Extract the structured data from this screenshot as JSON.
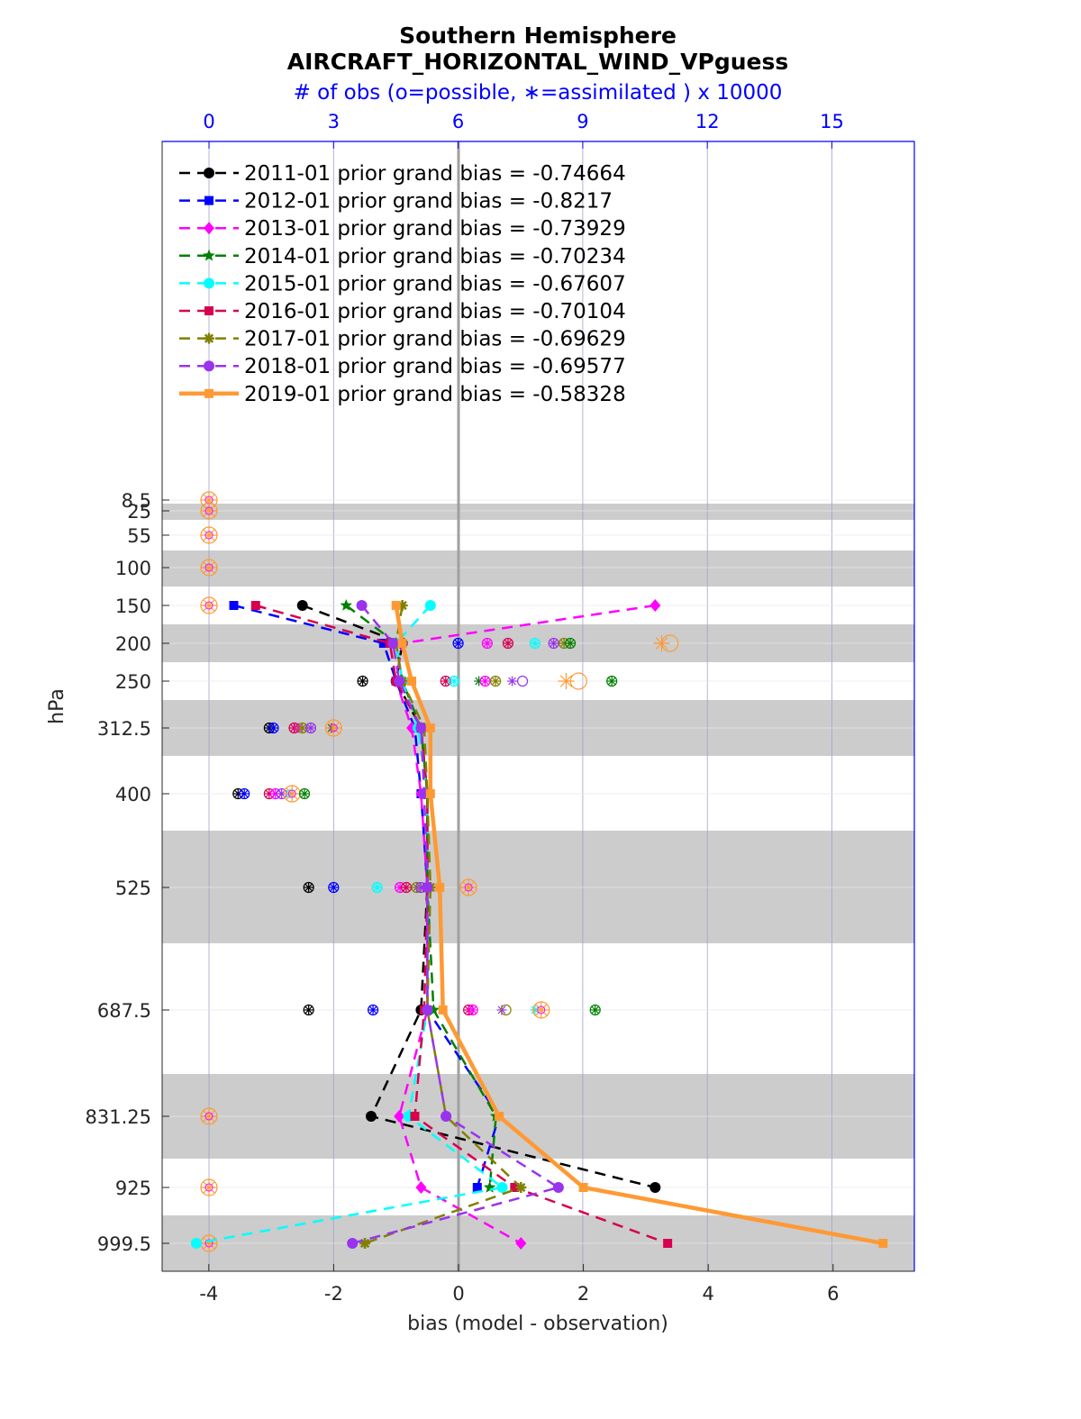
{
  "chart_data": {
    "type": "line",
    "title": "Southern Hemisphere",
    "subtitle": "AIRCRAFT_HORIZONTAL_WIND_VPguess",
    "top_axis_label": "# of obs (o=possible, ∗=assimilated ) x 10000",
    "xlabel": "bias (model - observation)",
    "ylabel": "hPa",
    "xlim": [
      -4.7,
      7.35
    ],
    "bias_ticks": [
      "-4",
      "-2",
      "0",
      "2",
      "4",
      "6"
    ],
    "obs_ticks": [
      "0",
      "3",
      "6",
      "9",
      "12",
      "15"
    ],
    "pressure_levels": [
      "8.5",
      "25",
      "55",
      "100",
      "150",
      "200",
      "250",
      "312.5",
      "400",
      "525",
      "687.5",
      "831.25",
      "925",
      "999.5"
    ],
    "grid": true,
    "legend_position": "top-left",
    "series": [
      {
        "name": "2011-01",
        "label": "2011-01 prior grand bias = -0.74664",
        "color": "#000000",
        "marker": "circle",
        "style": "dashed",
        "bias": [
          null,
          null,
          null,
          null,
          -2.5,
          -0.9,
          -1.0,
          -0.6,
          -0.5,
          -0.5,
          -0.6,
          -1.4,
          3.15,
          null
        ]
      },
      {
        "name": "2012-01",
        "label": "2012-01 prior grand bias = -0.8217",
        "color": "#0000ff",
        "marker": "square",
        "style": "dashed",
        "bias": [
          null,
          null,
          null,
          null,
          -3.6,
          -1.2,
          -1.0,
          -0.7,
          -0.6,
          -0.5,
          -0.5,
          0.65,
          0.3,
          null
        ]
      },
      {
        "name": "2013-01",
        "label": "2013-01 prior grand bias = -0.73929",
        "color": "#ff00ff",
        "marker": "diamond",
        "style": "dashed",
        "bias": [
          null,
          null,
          null,
          null,
          3.15,
          -0.9,
          -1.0,
          -0.75,
          -0.6,
          -0.5,
          -0.5,
          -0.95,
          -0.6,
          1.0
        ]
      },
      {
        "name": "2014-01",
        "label": "2014-01 prior grand bias = -0.70234",
        "color": "#008000",
        "marker": "star",
        "style": "dashed",
        "bias": [
          null,
          null,
          null,
          null,
          -1.8,
          -1.0,
          -0.9,
          -0.6,
          -0.5,
          -0.5,
          -0.4,
          0.6,
          0.5,
          null
        ]
      },
      {
        "name": "2015-01",
        "label": "2015-01 prior grand bias = -0.67607",
        "color": "#00ffff",
        "marker": "circle",
        "style": "dashed",
        "bias": [
          null,
          null,
          null,
          null,
          -0.45,
          -1.0,
          -0.9,
          -0.65,
          -0.5,
          -0.5,
          -0.5,
          -0.8,
          0.7,
          -4.2
        ]
      },
      {
        "name": "2016-01",
        "label": "2016-01 prior grand bias = -0.70104",
        "color": "#d6004f",
        "marker": "square",
        "style": "dashed",
        "bias": [
          null,
          null,
          null,
          null,
          -3.25,
          -1.1,
          -1.0,
          -0.6,
          -0.5,
          -0.5,
          -0.55,
          -0.7,
          0.9,
          3.35
        ]
      },
      {
        "name": "2017-01",
        "label": "2017-01 prior grand bias = -0.69629",
        "color": "#808000",
        "marker": "asterisk",
        "style": "dashed",
        "bias": [
          null,
          null,
          null,
          null,
          -0.9,
          -1.0,
          -0.9,
          -0.55,
          -0.5,
          -0.45,
          -0.5,
          -0.2,
          1.0,
          -1.5
        ]
      },
      {
        "name": "2018-01",
        "label": "2018-01 prior grand bias = -0.69577",
        "color": "#9933ee",
        "marker": "circle",
        "style": "dashed",
        "bias": [
          null,
          null,
          null,
          null,
          -1.55,
          -1.05,
          -0.95,
          -0.6,
          -0.55,
          -0.5,
          -0.5,
          -0.2,
          1.6,
          -1.7
        ]
      },
      {
        "name": "2019-01",
        "label": "2019-01 prior grand bias = -0.58328",
        "color": "#ff9933",
        "marker": "square",
        "style": "solid",
        "bias": [
          null,
          null,
          null,
          null,
          -1.0,
          -0.9,
          -0.75,
          -0.45,
          -0.45,
          -0.3,
          -0.25,
          0.65,
          2.0,
          6.8
        ]
      }
    ],
    "obs_count": {
      "note_units": "x 10000",
      "markers": [
        {
          "level": "8.5",
          "obs": 0.0,
          "color": "#ff9933",
          "kind": "both",
          "big": true
        },
        {
          "level": "25",
          "obs": 0.0,
          "color": "#ff9933",
          "kind": "both",
          "big": true
        },
        {
          "level": "55",
          "obs": 0.0,
          "color": "#ff9933",
          "kind": "both",
          "big": true
        },
        {
          "level": "100",
          "obs": 0.0,
          "color": "#ff9933",
          "kind": "both",
          "big": true
        },
        {
          "level": "150",
          "obs": 0.0,
          "color": "#ff9933",
          "kind": "both",
          "big": true
        },
        {
          "level": "200",
          "obs": 6.0,
          "color": "#0000ff",
          "kind": "both"
        },
        {
          "level": "200",
          "obs": 6.7,
          "color": "#ff00ff",
          "kind": "both"
        },
        {
          "level": "200",
          "obs": 7.2,
          "color": "#d6004f",
          "kind": "both"
        },
        {
          "level": "200",
          "obs": 7.85,
          "color": "#00ffff",
          "kind": "both"
        },
        {
          "level": "200",
          "obs": 8.3,
          "color": "#9933ee",
          "kind": "both"
        },
        {
          "level": "200",
          "obs": 8.55,
          "color": "#808000",
          "kind": "both"
        },
        {
          "level": "200",
          "obs": 8.7,
          "color": "#008000",
          "kind": "both"
        },
        {
          "level": "200",
          "obs": 10.9,
          "color": "#ff9933",
          "kind": "star",
          "big": true
        },
        {
          "level": "200",
          "obs": 11.1,
          "color": "#ff9933",
          "kind": "circle",
          "big": true
        },
        {
          "level": "250",
          "obs": 3.7,
          "color": "#000000",
          "kind": "both"
        },
        {
          "level": "250",
          "obs": 5.7,
          "color": "#d6004f",
          "kind": "both"
        },
        {
          "level": "250",
          "obs": 5.9,
          "color": "#00ffff",
          "kind": "both"
        },
        {
          "level": "250",
          "obs": 6.5,
          "color": "#008000",
          "kind": "star"
        },
        {
          "level": "250",
          "obs": 6.65,
          "color": "#ff00ff",
          "kind": "both"
        },
        {
          "level": "250",
          "obs": 6.9,
          "color": "#808000",
          "kind": "both"
        },
        {
          "level": "250",
          "obs": 7.3,
          "color": "#9933ee",
          "kind": "star"
        },
        {
          "level": "250",
          "obs": 7.55,
          "color": "#9933ee",
          "kind": "circle"
        },
        {
          "level": "250",
          "obs": 8.6,
          "color": "#ff9933",
          "kind": "star",
          "big": true
        },
        {
          "level": "250",
          "obs": 8.9,
          "color": "#ff9933",
          "kind": "circle",
          "big": true
        },
        {
          "level": "250",
          "obs": 9.7,
          "color": "#008000",
          "kind": "both"
        },
        {
          "level": "312.5",
          "obs": 1.45,
          "color": "#000000",
          "kind": "both"
        },
        {
          "level": "312.5",
          "obs": 1.55,
          "color": "#0000ff",
          "kind": "both"
        },
        {
          "level": "312.5",
          "obs": 2.05,
          "color": "#d6004f",
          "kind": "both"
        },
        {
          "level": "312.5",
          "obs": 2.15,
          "color": "#ff00ff",
          "kind": "star"
        },
        {
          "level": "312.5",
          "obs": 2.25,
          "color": "#808000",
          "kind": "both"
        },
        {
          "level": "312.5",
          "obs": 2.45,
          "color": "#9933ee",
          "kind": "both"
        },
        {
          "level": "312.5",
          "obs": 2.95,
          "color": "#008000",
          "kind": "star"
        },
        {
          "level": "312.5",
          "obs": 3.0,
          "color": "#ff9933",
          "kind": "both",
          "big": true
        },
        {
          "level": "400",
          "obs": 0.7,
          "color": "#000000",
          "kind": "both"
        },
        {
          "level": "400",
          "obs": 0.85,
          "color": "#0000ff",
          "kind": "both"
        },
        {
          "level": "400",
          "obs": 1.45,
          "color": "#d6004f",
          "kind": "both"
        },
        {
          "level": "400",
          "obs": 1.6,
          "color": "#ff00ff",
          "kind": "both"
        },
        {
          "level": "400",
          "obs": 1.75,
          "color": "#9933ee",
          "kind": "both"
        },
        {
          "level": "400",
          "obs": 1.95,
          "color": "#00ffff",
          "kind": "star"
        },
        {
          "level": "400",
          "obs": 2.0,
          "color": "#ff9933",
          "kind": "both",
          "big": true
        },
        {
          "level": "400",
          "obs": 2.3,
          "color": "#008000",
          "kind": "both"
        },
        {
          "level": "525",
          "obs": 2.4,
          "color": "#000000",
          "kind": "both"
        },
        {
          "level": "525",
          "obs": 3.0,
          "color": "#0000ff",
          "kind": "both"
        },
        {
          "level": "525",
          "obs": 4.05,
          "color": "#00ffff",
          "kind": "both"
        },
        {
          "level": "525",
          "obs": 4.6,
          "color": "#ff00ff",
          "kind": "both"
        },
        {
          "level": "525",
          "obs": 4.75,
          "color": "#d6004f",
          "kind": "both"
        },
        {
          "level": "525",
          "obs": 5.0,
          "color": "#808000",
          "kind": "both"
        },
        {
          "level": "525",
          "obs": 5.1,
          "color": "#9933ee",
          "kind": "both"
        },
        {
          "level": "525",
          "obs": 6.25,
          "color": "#ff9933",
          "kind": "both",
          "big": true
        },
        {
          "level": "687.5",
          "obs": 2.4,
          "color": "#000000",
          "kind": "both"
        },
        {
          "level": "687.5",
          "obs": 3.95,
          "color": "#0000ff",
          "kind": "both"
        },
        {
          "level": "687.5",
          "obs": 6.25,
          "color": "#d6004f",
          "kind": "both"
        },
        {
          "level": "687.5",
          "obs": 6.35,
          "color": "#ff00ff",
          "kind": "both"
        },
        {
          "level": "687.5",
          "obs": 7.05,
          "color": "#9933ee",
          "kind": "star"
        },
        {
          "level": "687.5",
          "obs": 7.15,
          "color": "#808000",
          "kind": "circle"
        },
        {
          "level": "687.5",
          "obs": 7.85,
          "color": "#00ffff",
          "kind": "star"
        },
        {
          "level": "687.5",
          "obs": 8.0,
          "color": "#ff9933",
          "kind": "both",
          "big": true
        },
        {
          "level": "687.5",
          "obs": 9.3,
          "color": "#008000",
          "kind": "both"
        },
        {
          "level": "831.25",
          "obs": 0.0,
          "color": "#ff9933",
          "kind": "both",
          "big": true
        },
        {
          "level": "925",
          "obs": 0.0,
          "color": "#ff9933",
          "kind": "both",
          "big": true
        },
        {
          "level": "999.5",
          "obs": 0.0,
          "color": "#ff9933",
          "kind": "both",
          "big": true
        }
      ]
    }
  }
}
